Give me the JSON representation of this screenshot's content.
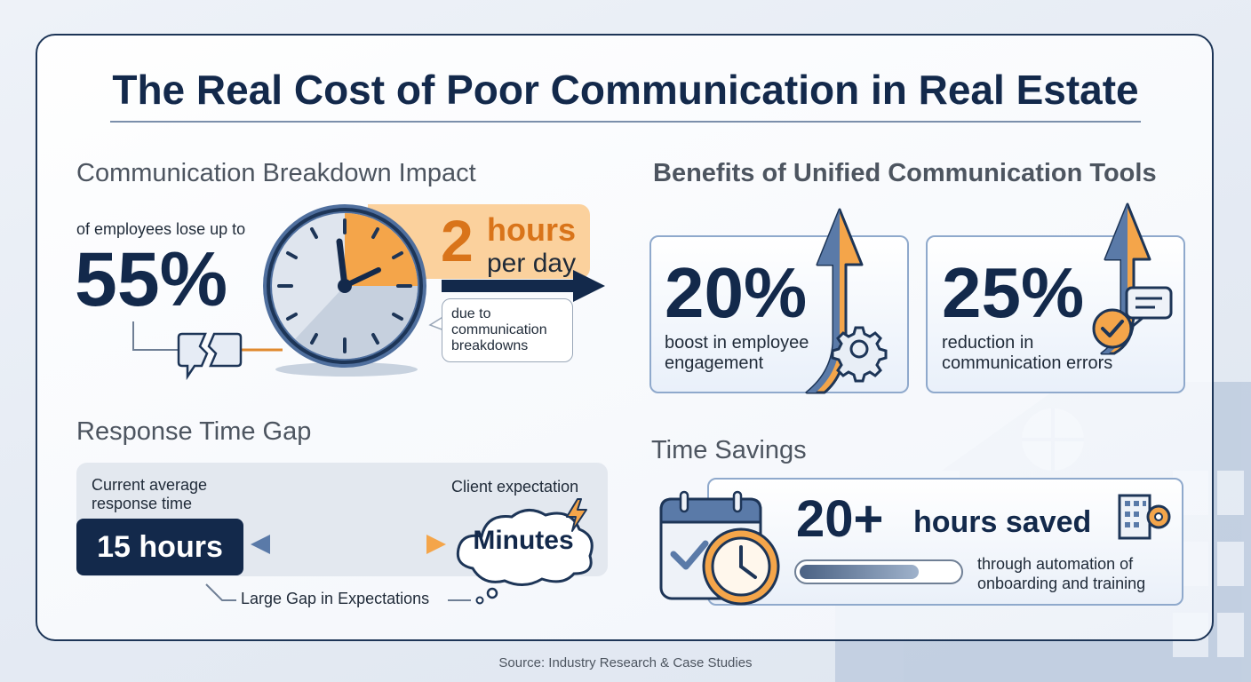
{
  "title": "The Real Cost of Poor Communication in Real Estate",
  "breakdown": {
    "heading": "Communication Breakdown Impact",
    "lose_text": "of employees lose up to",
    "percent": "55%",
    "hours_number": "2",
    "hours_word": "hours",
    "per_day": "per day",
    "due_to": "due to communication breakdowns"
  },
  "benefits": {
    "heading": "Benefits of Unified Communication Tools",
    "cards": [
      {
        "value": "20%",
        "label": "boost in employee engagement"
      },
      {
        "value": "25%",
        "label": "reduction in communication errors"
      }
    ]
  },
  "response": {
    "heading": "Response Time Gap",
    "current_label": "Current average response time",
    "current_value": "15 hours",
    "client_label": "Client expectation",
    "client_value": "Minutes",
    "gap_label": "Large Gap in Expectations"
  },
  "savings": {
    "heading": "Time Savings",
    "value": "20+",
    "unit": "hours saved",
    "label": "through automation of onboarding and training",
    "progress_fraction": 0.75
  },
  "source": "Source: Industry Research & Case Studies",
  "colors": {
    "navy": "#13294b",
    "orange": "#f4a54a",
    "dark_orange": "#d9741a",
    "steel_blue": "#5a7aa8",
    "light_orange": "#fbd19d"
  },
  "icons": [
    "clock-icon",
    "broken-speech-bubble-icon",
    "arrow-up-icon",
    "gear-icon",
    "chat-bubble-icon",
    "checkmark-icon",
    "calendar-icon",
    "building-icon",
    "lightning-icon",
    "thought-cloud-icon",
    "house-icon"
  ]
}
